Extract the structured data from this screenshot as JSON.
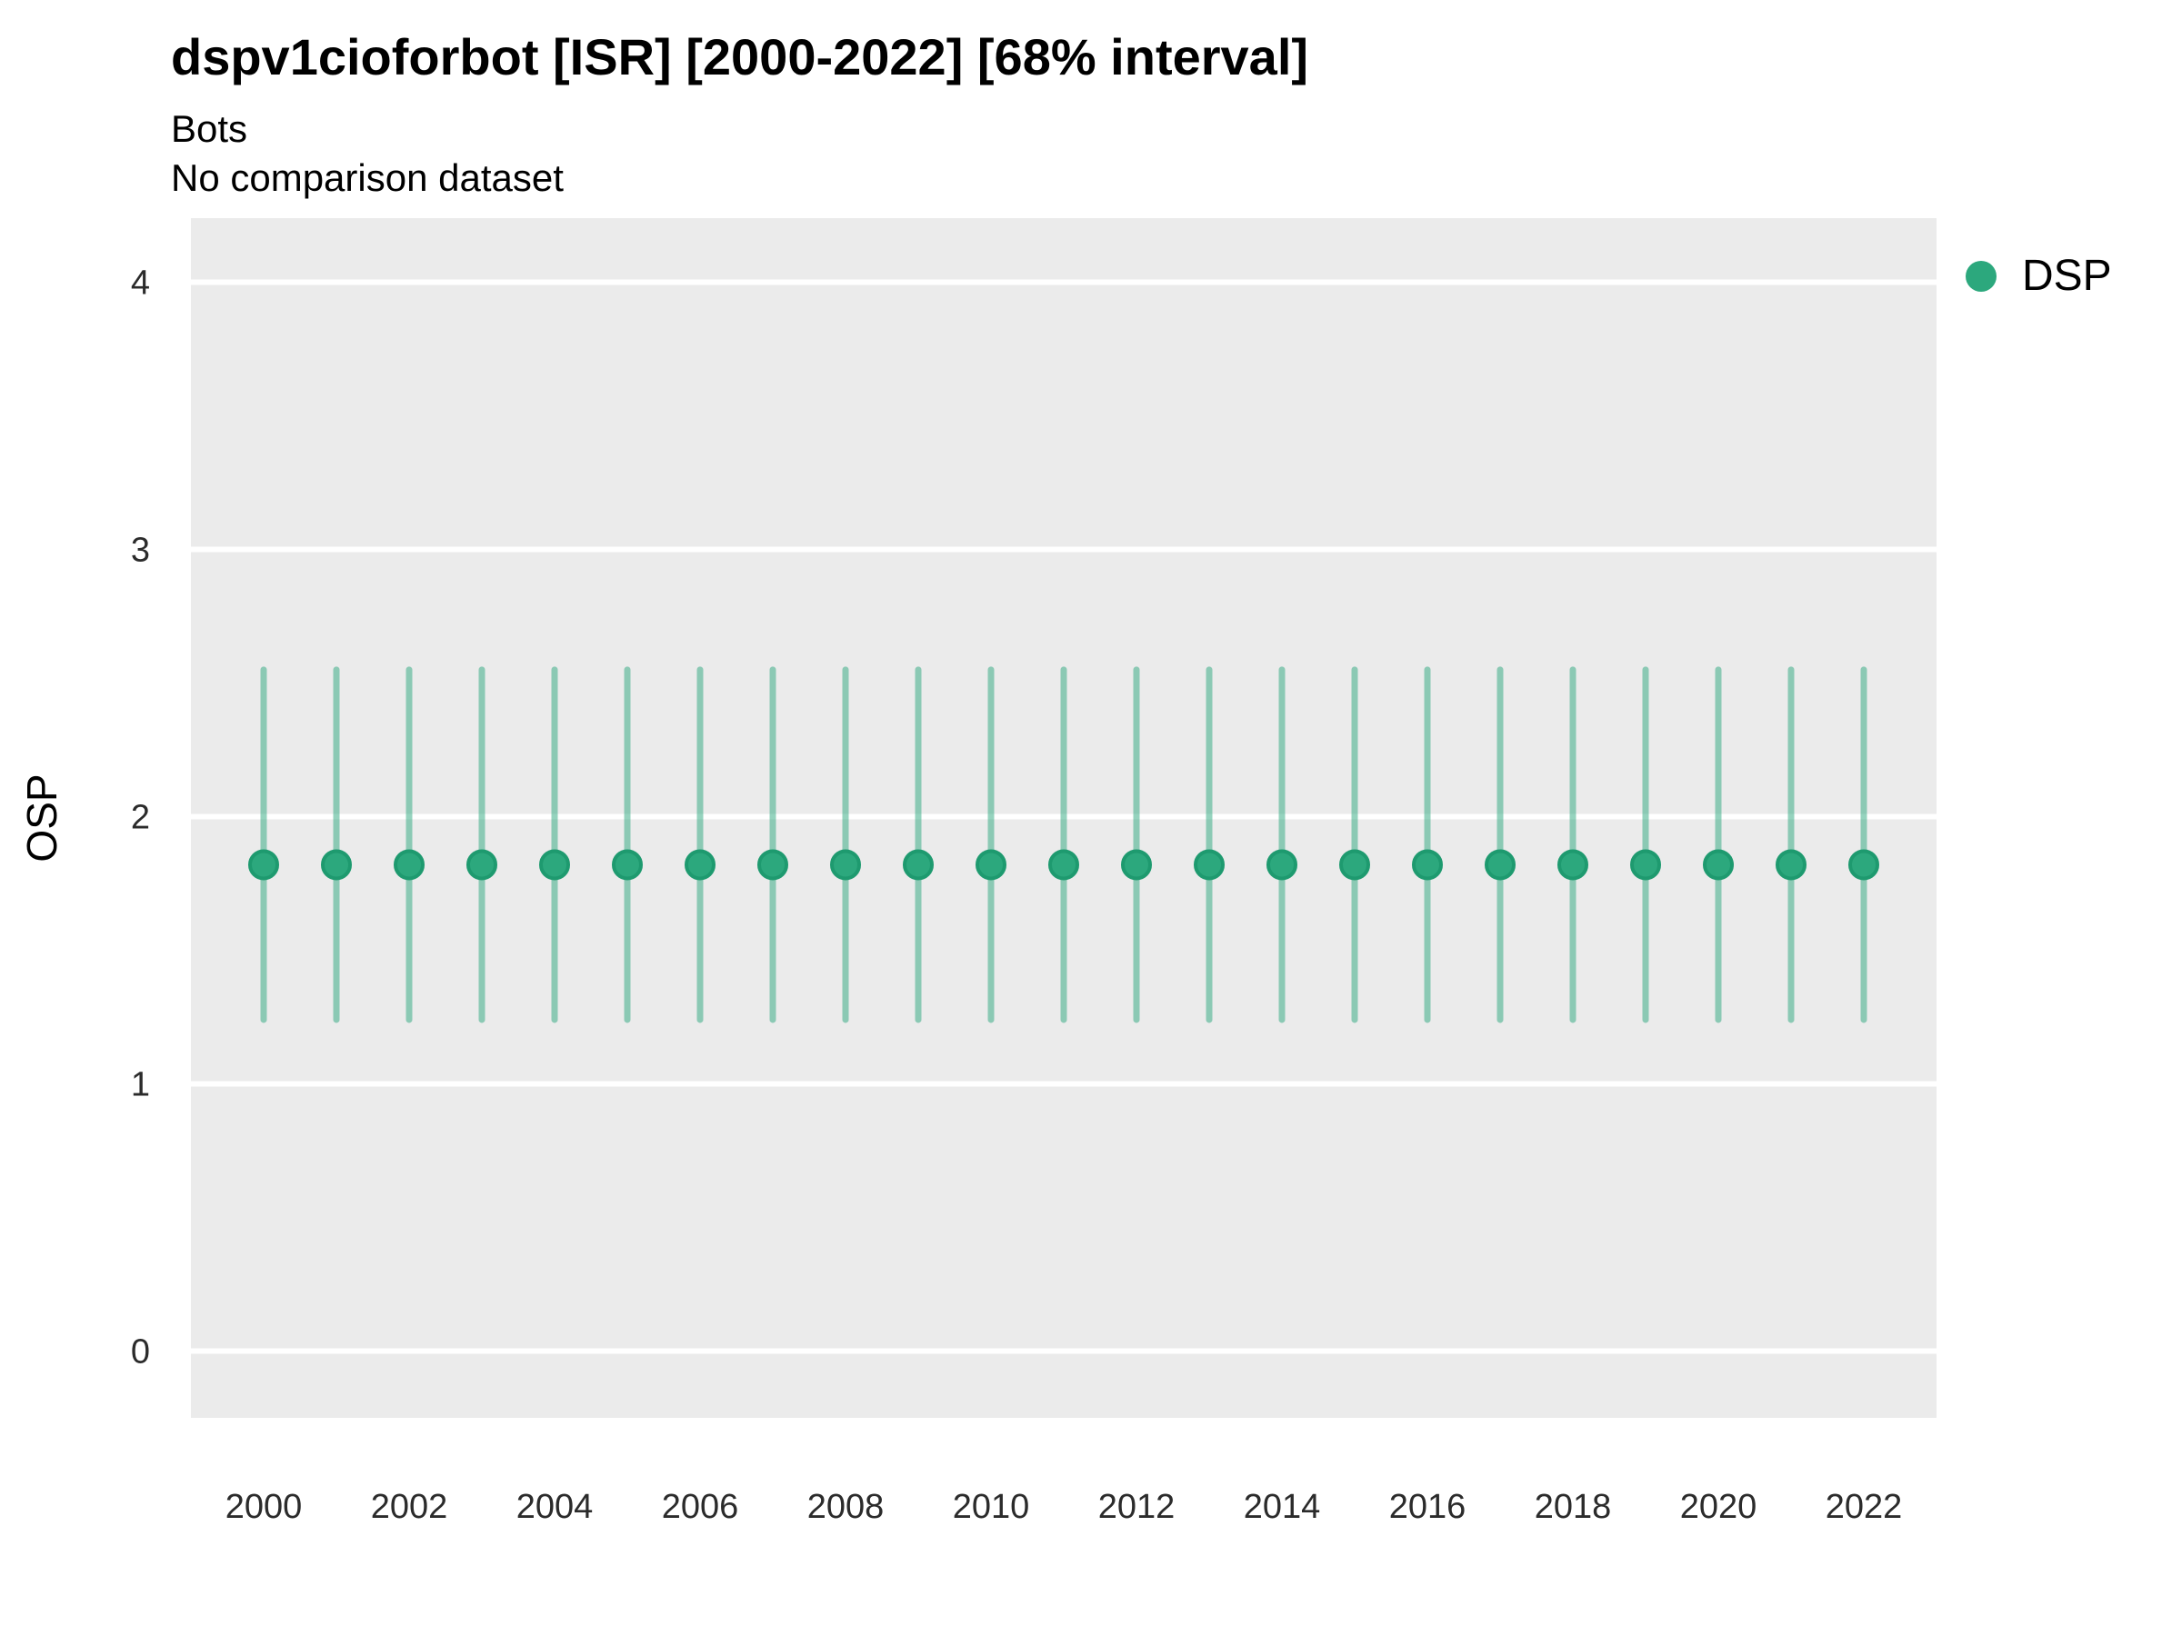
{
  "chart_data": {
    "type": "scatter",
    "title": "dspv1cioforbot [ISR] [2000-2022] [68% interval]",
    "subtitle": "Bots",
    "note": "No comparison dataset",
    "xlabel": "",
    "ylabel": "OSP",
    "x": [
      2000,
      2001,
      2002,
      2003,
      2004,
      2005,
      2006,
      2007,
      2008,
      2009,
      2010,
      2011,
      2012,
      2013,
      2014,
      2015,
      2016,
      2017,
      2018,
      2019,
      2020,
      2021,
      2022
    ],
    "series": [
      {
        "name": "DSP",
        "values": [
          1.82,
          1.82,
          1.82,
          1.82,
          1.82,
          1.82,
          1.82,
          1.82,
          1.82,
          1.82,
          1.82,
          1.82,
          1.82,
          1.82,
          1.82,
          1.82,
          1.82,
          1.82,
          1.82,
          1.82,
          1.82,
          1.82,
          1.82
        ],
        "interval_low": [
          1.24,
          1.24,
          1.24,
          1.24,
          1.24,
          1.24,
          1.24,
          1.24,
          1.24,
          1.24,
          1.24,
          1.24,
          1.24,
          1.24,
          1.24,
          1.24,
          1.24,
          1.24,
          1.24,
          1.24,
          1.24,
          1.24,
          1.24
        ],
        "interval_high": [
          2.55,
          2.55,
          2.55,
          2.55,
          2.55,
          2.55,
          2.55,
          2.55,
          2.55,
          2.55,
          2.55,
          2.55,
          2.55,
          2.55,
          2.55,
          2.55,
          2.55,
          2.55,
          2.55,
          2.55,
          2.55,
          2.55,
          2.55
        ],
        "interval_kind": "68% interval",
        "point_color": "#2CA87D",
        "point_stroke_color": "#1E9A6F",
        "errorbar_color": "rgba(44, 168, 125, 0.5)"
      }
    ],
    "x_ticks": [
      2000,
      2002,
      2004,
      2006,
      2008,
      2010,
      2012,
      2014,
      2016,
      2018,
      2020,
      2022
    ],
    "y_ticks": [
      0,
      1,
      2,
      3,
      4
    ],
    "xlim": [
      1999,
      2023
    ],
    "ylim": [
      -0.25,
      4.24
    ],
    "grid": "major-horizontal",
    "panel_bg_color": "#EBEBEB",
    "grid_color": "#FFFFFF",
    "legend_position": "right-top",
    "legend": {
      "items": [
        {
          "label": "DSP",
          "color": "#2CA87D"
        }
      ]
    }
  }
}
